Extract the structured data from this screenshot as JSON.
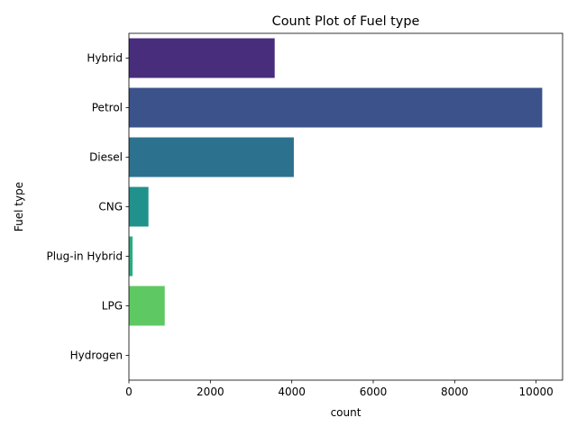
{
  "chart_data": {
    "type": "bar",
    "orientation": "horizontal",
    "title": "Count Plot of Fuel type",
    "xlabel": "count",
    "ylabel": "Fuel type",
    "categories": [
      "Hybrid",
      "Petrol",
      "Diesel",
      "CNG",
      "Plug-in Hybrid",
      "LPG",
      "Hydrogen"
    ],
    "values": [
      3580,
      10150,
      4050,
      480,
      90,
      880,
      1
    ],
    "xlim": [
      0,
      10650
    ],
    "xticks": [
      0,
      2000,
      4000,
      6000,
      8000,
      10000
    ],
    "colors": [
      "#472d7b",
      "#3b528b",
      "#2c728e",
      "#21918c",
      "#28ae80",
      "#5ec962",
      "#addc30"
    ],
    "grid": false,
    "legend": "none"
  }
}
